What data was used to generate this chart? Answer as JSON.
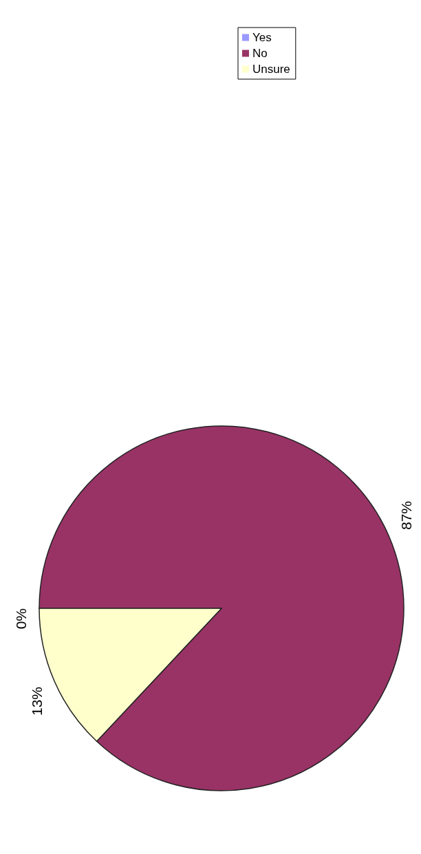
{
  "chart_data": {
    "type": "pie",
    "categories": [
      "Yes",
      "No",
      "Unsure"
    ],
    "values": [
      0,
      87,
      13
    ],
    "colors": [
      "#9999ff",
      "#993366",
      "#ffffcc"
    ],
    "value_labels": [
      "0%",
      "87%",
      "13%"
    ],
    "legend": "right"
  }
}
